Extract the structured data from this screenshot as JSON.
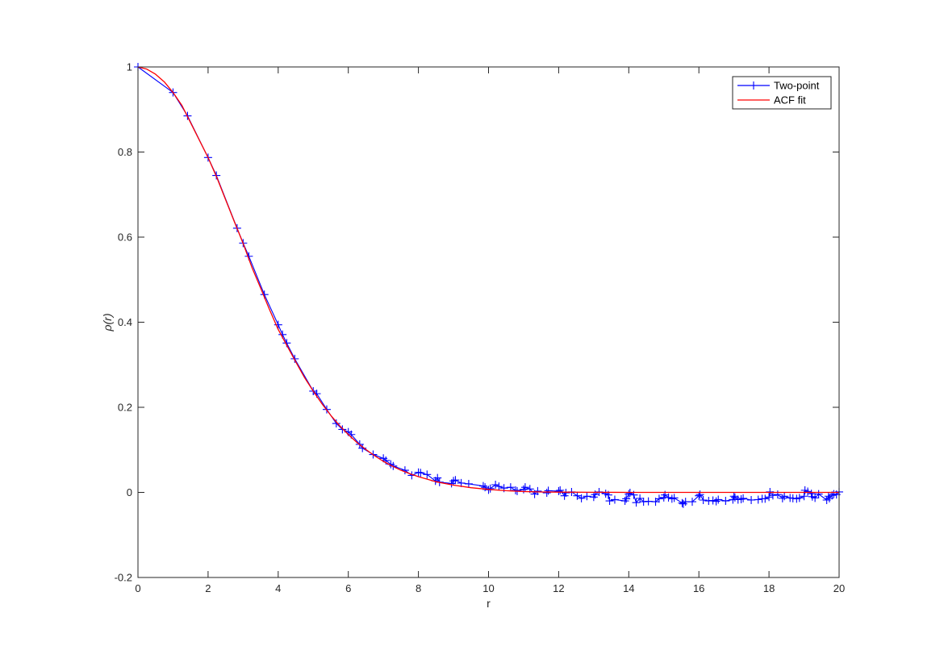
{
  "chart_data": {
    "type": "line",
    "xlabel": "r",
    "ylabel": "ρ(r)",
    "xlim": [
      0,
      20
    ],
    "ylim": [
      -0.2,
      1
    ],
    "xticks": [
      0,
      2,
      4,
      6,
      8,
      10,
      12,
      14,
      16,
      18,
      20
    ],
    "yticks": [
      -0.2,
      0,
      0.2,
      0.4,
      0.6,
      0.8,
      1
    ],
    "xtick_labels": [
      "0",
      "2",
      "4",
      "6",
      "8",
      "10",
      "12",
      "14",
      "16",
      "18",
      "20"
    ],
    "ytick_labels": [
      "-0.2",
      "0",
      "0.2",
      "0.4",
      "0.6",
      "0.8",
      "1"
    ],
    "grid": false,
    "legend_position": "top-right",
    "series": [
      {
        "name": "Two-point",
        "color": "#0000ff",
        "marker": "plus",
        "line": true,
        "x": [
          0,
          1.0,
          1.414,
          2.0,
          2.236,
          2.828,
          3.0,
          3.162,
          3.606,
          4.0,
          4.123,
          4.243,
          4.472,
          5.0,
          5.099,
          5.385,
          5.657,
          5.831,
          6.0,
          6.083,
          6.325,
          6.403,
          6.708,
          7.0,
          7.071,
          7.211,
          7.28,
          7.616,
          7.81,
          8.0,
          8.062,
          8.246,
          8.485,
          8.544,
          8.602,
          8.944,
          9.0,
          9.055,
          9.22,
          9.434,
          9.849,
          9.899,
          10.0,
          10.05,
          10.198,
          10.296,
          10.44,
          10.63,
          10.77,
          10.817,
          11.0,
          11.045,
          11.18,
          11.314,
          11.402,
          11.662,
          11.705,
          12.0,
          12.042,
          12.166,
          12.207,
          12.369,
          12.53,
          12.649,
          12.806,
          13.0,
          13.038,
          13.153,
          13.342,
          13.416,
          13.454,
          13.601,
          13.892,
          13.928,
          14.0,
          14.036,
          14.142,
          14.213,
          14.318,
          14.422,
          14.56,
          14.765,
          14.866,
          15.0,
          15.033,
          15.133,
          15.232,
          15.297,
          15.524,
          15.556,
          15.62,
          15.811,
          16.0,
          16.031,
          16.125,
          16.279,
          16.401,
          16.492,
          16.553,
          16.763,
          16.97,
          17.0,
          17.029,
          17.117,
          17.205,
          17.263,
          17.493,
          17.692,
          17.804,
          17.889,
          18.0,
          18.028,
          18.111,
          18.248,
          18.385,
          18.439,
          18.601,
          18.682,
          18.788,
          18.868,
          19.0,
          19.026,
          19.105,
          19.209,
          19.235,
          19.313,
          19.416,
          19.647,
          19.698,
          19.723,
          19.799,
          19.849,
          19.925,
          20.0
        ],
        "y": [
          1.0,
          0.94,
          0.885,
          0.787,
          0.745,
          0.621,
          0.586,
          0.555,
          0.465,
          0.394,
          0.371,
          0.351,
          0.314,
          0.238,
          0.232,
          0.195,
          0.162,
          0.148,
          0.142,
          0.136,
          0.113,
          0.104,
          0.089,
          0.08,
          0.075,
          0.066,
          0.062,
          0.052,
          0.04,
          0.047,
          0.046,
          0.042,
          0.027,
          0.034,
          0.024,
          0.021,
          0.027,
          0.029,
          0.022,
          0.02,
          0.015,
          0.012,
          0.006,
          0.009,
          0.018,
          0.014,
          0.01,
          0.012,
          0.005,
          0.003,
          0.007,
          0.012,
          0.008,
          -0.004,
          0.003,
          -0.001,
          0.004,
          0.003,
          0.005,
          -0.008,
          -0.001,
          0.001,
          -0.008,
          -0.014,
          -0.009,
          -0.011,
          -0.005,
          0.001,
          -0.003,
          -0.006,
          -0.02,
          -0.017,
          -0.02,
          -0.015,
          -0.004,
          -0.001,
          -0.006,
          -0.024,
          -0.014,
          -0.022,
          -0.021,
          -0.022,
          -0.015,
          -0.012,
          -0.006,
          -0.012,
          -0.015,
          -0.013,
          -0.025,
          -0.027,
          -0.022,
          -0.022,
          -0.008,
          -0.005,
          -0.018,
          -0.02,
          -0.019,
          -0.021,
          -0.017,
          -0.02,
          -0.017,
          -0.009,
          -0.012,
          -0.017,
          -0.016,
          -0.014,
          -0.018,
          -0.017,
          -0.015,
          -0.015,
          -0.011,
          0.001,
          -0.007,
          -0.005,
          -0.014,
          -0.009,
          -0.013,
          -0.014,
          -0.015,
          -0.013,
          -0.009,
          0.005,
          0.002,
          -0.003,
          -0.01,
          -0.013,
          -0.004,
          -0.018,
          -0.009,
          -0.014,
          -0.007,
          -0.004,
          -0.005,
          0.001
        ]
      },
      {
        "name": "ACF fit",
        "color": "#ff0000",
        "marker": "none",
        "line": true,
        "x": [
          0,
          0.25,
          0.5,
          0.75,
          1.0,
          1.25,
          1.5,
          1.75,
          2.0,
          2.25,
          2.5,
          2.75,
          3.0,
          3.25,
          3.5,
          3.75,
          4.0,
          4.25,
          4.5,
          4.75,
          5.0,
          5.25,
          5.5,
          5.75,
          6.0,
          6.25,
          6.5,
          6.75,
          7.0,
          7.25,
          7.5,
          7.75,
          8.0,
          8.5,
          9.0,
          9.5,
          10.0,
          10.5,
          11.0,
          11.5,
          12.0,
          13.0,
          14.0,
          15.0,
          16.0,
          17.0,
          18.0,
          19.0,
          20.0
        ],
        "y": [
          1.0,
          0.995,
          0.983,
          0.965,
          0.94,
          0.91,
          0.869,
          0.828,
          0.787,
          0.74,
          0.688,
          0.636,
          0.585,
          0.529,
          0.48,
          0.43,
          0.383,
          0.345,
          0.307,
          0.27,
          0.238,
          0.208,
          0.181,
          0.157,
          0.136,
          0.117,
          0.101,
          0.086,
          0.073,
          0.062,
          0.052,
          0.044,
          0.037,
          0.025,
          0.017,
          0.011,
          0.007,
          0.004,
          0.002,
          0.001,
          0.0006,
          0.0002,
          0.0,
          0.0,
          0.0,
          0.0,
          0.0,
          0.0,
          0.0
        ]
      }
    ]
  }
}
